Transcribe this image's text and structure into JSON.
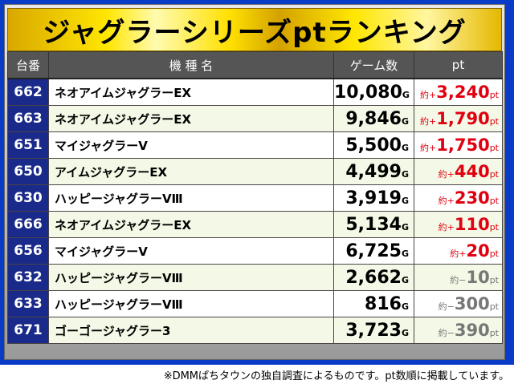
{
  "title": "ジャグラーシリーズptランキング",
  "headers": [
    "台番",
    "機 種 名",
    "ゲーム数",
    "pt"
  ],
  "rows": [
    {
      "no": "662",
      "name": "ネオアイムジャグラーEX",
      "games": "10,080",
      "prefix": "約+",
      "pt": "3,240",
      "sign": "pos"
    },
    {
      "no": "663",
      "name": "ネオアイムジャグラーEX",
      "games": "9,846",
      "prefix": "約+",
      "pt": "1,790",
      "sign": "pos"
    },
    {
      "no": "651",
      "name": "マイジャグラーⅤ",
      "games": "5,500",
      "prefix": "約+",
      "pt": "1,750",
      "sign": "pos"
    },
    {
      "no": "650",
      "name": "アイムジャグラーEX",
      "games": "4,499",
      "prefix": "約+",
      "pt": "440",
      "sign": "pos"
    },
    {
      "no": "630",
      "name": "ハッピージャグラーⅤⅢ",
      "games": "3,919",
      "prefix": "約+",
      "pt": "230",
      "sign": "pos"
    },
    {
      "no": "666",
      "name": "ネオアイムジャグラーEX",
      "games": "5,134",
      "prefix": "約+",
      "pt": "110",
      "sign": "pos"
    },
    {
      "no": "656",
      "name": "マイジャグラーⅤ",
      "games": "6,725",
      "prefix": "約+",
      "pt": "20",
      "sign": "pos"
    },
    {
      "no": "632",
      "name": "ハッピージャグラーⅤⅢ",
      "games": "2,662",
      "prefix": "約−",
      "pt": "10",
      "sign": "neg"
    },
    {
      "no": "633",
      "name": "ハッピージャグラーⅤⅢ",
      "games": "816",
      "prefix": "約−",
      "pt": "300",
      "sign": "neg"
    },
    {
      "no": "671",
      "name": "ゴーゴージャグラー3",
      "games": "3,723",
      "prefix": "約−",
      "pt": "390",
      "sign": "neg"
    }
  ],
  "game_unit": "G",
  "pt_unit": "pt",
  "footnote": "※DMMぱちタウンの独自調査によるものです。pt数順に掲載しています。",
  "colors": {
    "border": "#0a3bc6",
    "number_cell": "#1a2a8a",
    "positive": "#e00010",
    "negative": "#777777"
  }
}
